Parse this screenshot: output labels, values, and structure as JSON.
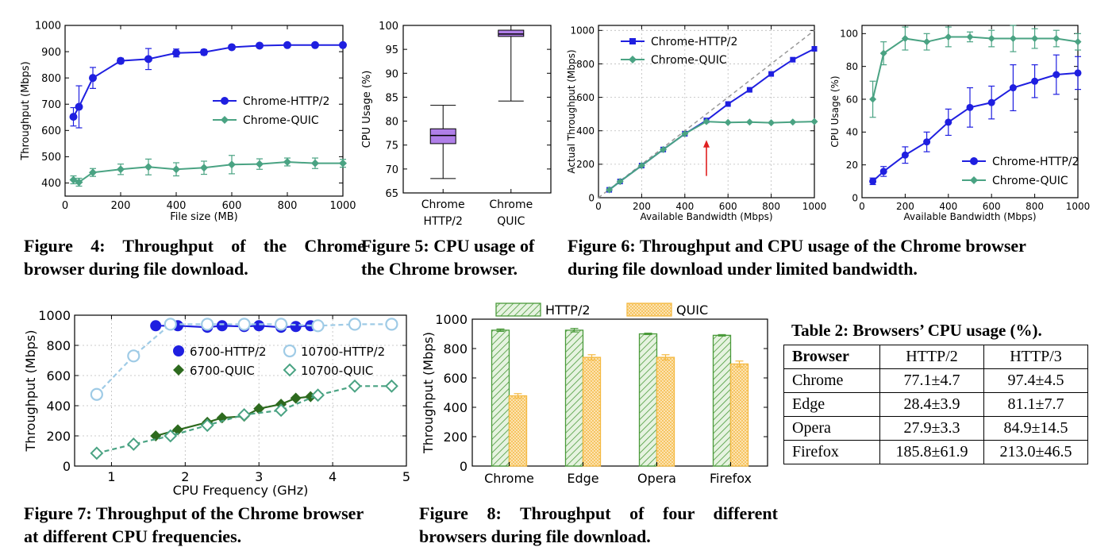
{
  "captions": {
    "fig4": "Figure 4: Throughput of the Chrome browser during file download.",
    "fig4_l1": "Figure 4: Throughput of the Chrome",
    "fig4_l2": "browser during file download.",
    "fig5_l1": "Figure 5: CPU usage of",
    "fig5_l2": "the Chrome browser.",
    "fig6_l1": "Figure 6: Throughput and CPU usage of the Chrome browser",
    "fig6_l2": "during file download under limited bandwidth.",
    "fig7_l1": "Figure 7: Throughput of the Chrome browser",
    "fig7_l2": "at different CPU frequencies.",
    "fig8_l1": "Figure 8: Throughput of four different",
    "fig8_l2": "browsers during file download."
  },
  "table2": {
    "title": "Table 2: Browsers’ CPU usage (%).",
    "headers": [
      "Browser",
      "HTTP/2",
      "HTTP/3"
    ],
    "rows": [
      [
        "Chrome",
        "77.1±4.7",
        "97.4±4.5"
      ],
      [
        "Edge",
        "28.4±3.9",
        "81.1±7.7"
      ],
      [
        "Opera",
        "27.9±3.3",
        "84.9±14.5"
      ],
      [
        "Firefox",
        "185.8±61.9",
        "213.0±46.5"
      ]
    ]
  },
  "colors": {
    "http2": "#1f1fe0",
    "quic": "#4aa383",
    "arrow": "#e02020",
    "box": "#b07fe8",
    "dark_green": "#2d6a1e",
    "light_blue": "#9fcbe6",
    "hatch_green": "#4a9a3a",
    "hatch_orange": "#f4b942"
  },
  "chart_data": [
    {
      "id": "fig4",
      "type": "line",
      "xlabel": "File size (MB)",
      "ylabel": "Throughput (Mbps)",
      "xlim": [
        0,
        1000
      ],
      "ylim": [
        350,
        1000
      ],
      "xticks": [
        0,
        200,
        400,
        600,
        800,
        1000
      ],
      "yticks": [
        400,
        500,
        600,
        700,
        800,
        900,
        1000
      ],
      "legend": "center-right",
      "series": [
        {
          "name": "Chrome-HTTP/2",
          "marker": "circle",
          "x": [
            30,
            50,
            100,
            200,
            300,
            400,
            500,
            600,
            700,
            800,
            900,
            1000
          ],
          "y": [
            652,
            690,
            800,
            865,
            872,
            895,
            898,
            917,
            923,
            925,
            925,
            925
          ],
          "err": [
            35,
            80,
            40,
            10,
            40,
            15,
            10,
            8,
            5,
            5,
            5,
            5
          ]
        },
        {
          "name": "Chrome-QUIC",
          "marker": "diamond",
          "x": [
            30,
            50,
            100,
            200,
            300,
            400,
            500,
            600,
            700,
            800,
            900,
            1000
          ],
          "y": [
            412,
            403,
            440,
            452,
            461,
            452,
            458,
            470,
            472,
            480,
            475,
            475
          ],
          "err": [
            15,
            15,
            15,
            20,
            30,
            25,
            25,
            35,
            20,
            15,
            20,
            15
          ]
        }
      ]
    },
    {
      "id": "fig5",
      "type": "box",
      "ylabel": "CPU Usage (%)",
      "ylim": [
        65,
        100
      ],
      "yticks": [
        65,
        70,
        75,
        80,
        85,
        90,
        95,
        100
      ],
      "categories": [
        "Chrome HTTP/2",
        "Chrome QUIC"
      ],
      "category_lines": [
        [
          "Chrome",
          "HTTP/2"
        ],
        [
          "Chrome",
          "QUIC"
        ]
      ],
      "boxes": [
        {
          "min": 68.0,
          "q1": 75.3,
          "median": 77.0,
          "q3": 78.4,
          "max": 83.3
        },
        {
          "min": 84.2,
          "q1": 97.7,
          "median": 98.2,
          "q3": 99.0,
          "max": 100.0
        }
      ]
    },
    {
      "id": "fig6a",
      "type": "line",
      "xlabel": "Available Bandwidth (Mbps)",
      "ylabel": "Actual Throughput (Mbps)",
      "xlim": [
        0,
        1000
      ],
      "ylim": [
        0,
        1030
      ],
      "xticks": [
        0,
        200,
        400,
        600,
        800,
        1000
      ],
      "yticks": [
        0,
        200,
        400,
        600,
        800,
        1000
      ],
      "legend": "top-left",
      "annotation": "arrow at x=500",
      "series": [
        {
          "name": "Chrome-HTTP/2",
          "marker": "square-circle",
          "x": [
            50,
            100,
            200,
            300,
            400,
            500,
            600,
            700,
            800,
            900,
            1000
          ],
          "y": [
            47,
            97,
            192,
            288,
            382,
            462,
            560,
            645,
            740,
            825,
            890
          ]
        },
        {
          "name": "Chrome-QUIC",
          "marker": "diamond",
          "x": [
            50,
            100,
            200,
            300,
            400,
            500,
            600,
            700,
            800,
            900,
            1000
          ],
          "y": [
            47,
            97,
            192,
            288,
            382,
            455,
            450,
            452,
            448,
            452,
            455
          ]
        }
      ]
    },
    {
      "id": "fig6b",
      "type": "line",
      "xlabel": "Available Bandwidth (Mbps)",
      "ylabel": "CPU Usage (%)",
      "xlim": [
        0,
        1000
      ],
      "ylim": [
        0,
        105
      ],
      "xticks": [
        0,
        200,
        400,
        600,
        800,
        1000
      ],
      "yticks": [
        0,
        20,
        40,
        60,
        80,
        100
      ],
      "legend": "bottom-right",
      "series": [
        {
          "name": "Chrome-HTTP/2",
          "marker": "circle",
          "x": [
            50,
            100,
            200,
            300,
            400,
            500,
            600,
            700,
            800,
            900,
            1000
          ],
          "y": [
            10,
            16,
            26,
            34,
            46,
            55,
            58,
            67,
            71,
            75,
            76
          ],
          "err": [
            2,
            3,
            5,
            6,
            8,
            12,
            10,
            14,
            10,
            12,
            10
          ]
        },
        {
          "name": "Chrome-QUIC",
          "marker": "diamond",
          "x": [
            50,
            100,
            200,
            300,
            400,
            500,
            600,
            700,
            800,
            900,
            1000
          ],
          "y": [
            60,
            88,
            97,
            95,
            98,
            98,
            97,
            97,
            97,
            97,
            95
          ],
          "err": [
            11,
            7,
            7,
            5,
            6,
            3,
            5,
            8,
            6,
            5,
            5
          ]
        }
      ]
    },
    {
      "id": "fig7",
      "type": "line",
      "xlabel": "CPU Frequency (GHz)",
      "ylabel": "Throughput (Mbps)",
      "xlim": [
        0.5,
        5
      ],
      "ylim": [
        0,
        1000
      ],
      "xticks": [
        1,
        2,
        3,
        4,
        5
      ],
      "yticks": [
        0,
        200,
        400,
        600,
        800,
        1000
      ],
      "legend": "top-right",
      "series": [
        {
          "name": "6700-HTTP/2",
          "marker": "circle",
          "x": [
            1.6,
            1.9,
            2.3,
            2.5,
            2.8,
            3.0,
            3.3,
            3.5,
            3.7
          ],
          "y": [
            930,
            930,
            920,
            930,
            925,
            930,
            920,
            925,
            930
          ]
        },
        {
          "name": "10700-HTTP/2",
          "marker": "circle-open",
          "x": [
            0.8,
            1.3,
            1.8,
            2.3,
            2.8,
            3.3,
            3.8,
            4.3,
            4.8
          ],
          "y": [
            475,
            730,
            940,
            940,
            940,
            940,
            930,
            940,
            940
          ]
        },
        {
          "name": "6700-QUIC",
          "marker": "diamond",
          "x": [
            1.6,
            1.9,
            2.3,
            2.5,
            2.8,
            3.0,
            3.3,
            3.5,
            3.7
          ],
          "y": [
            200,
            240,
            290,
            320,
            330,
            380,
            410,
            450,
            460
          ]
        },
        {
          "name": "10700-QUIC",
          "marker": "diamond-open",
          "x": [
            0.8,
            1.3,
            1.8,
            2.3,
            2.8,
            3.3,
            3.8,
            4.3,
            4.8
          ],
          "y": [
            85,
            145,
            200,
            270,
            340,
            370,
            470,
            530,
            530
          ]
        }
      ]
    },
    {
      "id": "fig8",
      "type": "bar",
      "ylabel": "Throughput (Mbps)",
      "ylim": [
        0,
        1000
      ],
      "yticks": [
        0,
        200,
        400,
        600,
        800,
        1000
      ],
      "legend": "top",
      "categories": [
        "Chrome",
        "Edge",
        "Opera",
        "Firefox"
      ],
      "series": [
        {
          "name": "HTTP/2",
          "values": [
            925,
            925,
            900,
            890
          ],
          "err": [
            8,
            12,
            5,
            5
          ]
        },
        {
          "name": "QUIC",
          "values": [
            478,
            740,
            740,
            695
          ],
          "err": [
            15,
            18,
            18,
            20
          ]
        }
      ]
    }
  ]
}
